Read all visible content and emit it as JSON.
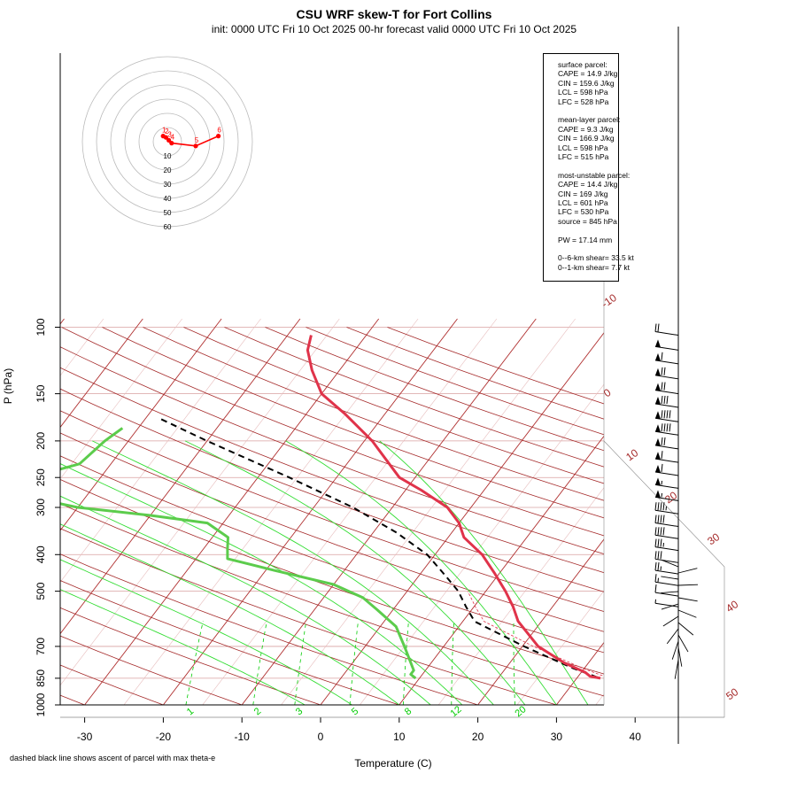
{
  "title": "CSU WRF skew-T for Fort Collins",
  "subtitle": "init: 0000 UTC Fri 10 Oct 2025     00-hr forecast valid 0000 UTC Fri 10 Oct 2025",
  "footnote": "dashed black line shows ascent of parcel with max theta-e",
  "stats": {
    "surface": {
      "heading": "surface parcel:",
      "lines": [
        "CAPE = 14.9 J/kg",
        "CIN = 159.6 J/kg",
        "LCL = 598 hPa",
        "LFC = 528 hPa"
      ]
    },
    "mean_layer": {
      "heading": "mean-layer parcel:",
      "lines": [
        "CAPE = 9.3 J/kg",
        "CIN = 166.9 J/kg",
        "LCL = 598 hPa",
        "LFC = 515 hPa"
      ]
    },
    "most_unstable": {
      "heading": "most-unstable parcel:",
      "lines": [
        "CAPE = 14.4 J/kg",
        "CIN = 169 J/kg",
        "LCL = 601 hPa",
        "LFC = 530 hPa",
        "source = 845 hPa"
      ]
    },
    "pw": "PW =  17.14 mm",
    "shear": [
      "0--6-km shear= 33.5 kt",
      "0--1-km shear= 7.7 kt"
    ]
  },
  "chart_data": {
    "type": "line",
    "subtype": "skew-T log-P diagram",
    "xlabel": "Temperature (C)",
    "ylabel": "P (hPa)",
    "x_ticks": [
      "-30",
      "-20",
      "-10",
      "0",
      "10",
      "20",
      "30",
      "40"
    ],
    "y_ticks": [
      "100",
      "150",
      "200",
      "250",
      "300",
      "400",
      "500",
      "700",
      "850",
      "1000"
    ],
    "y_scale": "log",
    "isotherm_labels": [
      "-10",
      "0",
      "10",
      "20",
      "30",
      "40",
      "50"
    ],
    "mixing_ratio_labels": [
      "1",
      "2",
      "3",
      "5",
      "8",
      "12",
      "20"
    ],
    "colors": {
      "temperature": "#e0334a",
      "dewpoint": "#5ccc4c",
      "parcel": "#000000",
      "isotherm": "#a52a2a",
      "mixing_ratio": "#00cc00",
      "dry_adiabat": "#a52a2a"
    },
    "temperature": [
      {
        "p": 850,
        "t": 33.0
      },
      {
        "p": 840,
        "t": 31.5
      },
      {
        "p": 820,
        "t": 30.5
      },
      {
        "p": 775,
        "t": 27.0
      },
      {
        "p": 700,
        "t": 22.0
      },
      {
        "p": 600,
        "t": 17.0
      },
      {
        "p": 550,
        "t": 15.0
      },
      {
        "p": 500,
        "t": 12.5
      },
      {
        "p": 450,
        "t": 9.5
      },
      {
        "p": 400,
        "t": 6.0
      },
      {
        "p": 360,
        "t": 2.0
      },
      {
        "p": 330,
        "t": 0.0
      },
      {
        "p": 300,
        "t": -3.0
      },
      {
        "p": 270,
        "t": -8.0
      },
      {
        "p": 250,
        "t": -12.0
      },
      {
        "p": 200,
        "t": -19.0
      },
      {
        "p": 170,
        "t": -25.0
      },
      {
        "p": 150,
        "t": -30.0
      },
      {
        "p": 130,
        "t": -33.5
      },
      {
        "p": 115,
        "t": -36.0
      },
      {
        "p": 105,
        "t": -37.0
      }
    ],
    "dewpoint": [
      {
        "p": 850,
        "t": 9.5
      },
      {
        "p": 830,
        "t": 8.5
      },
      {
        "p": 810,
        "t": 8.5
      },
      {
        "p": 700,
        "t": 5.0
      },
      {
        "p": 620,
        "t": 2.0
      },
      {
        "p": 560,
        "t": -2.0
      },
      {
        "p": 520,
        "t": -5.0
      },
      {
        "p": 480,
        "t": -10.0
      },
      {
        "p": 440,
        "t": -19.0
      },
      {
        "p": 410,
        "t": -26.0
      },
      {
        "p": 385,
        "t": -27.0
      },
      {
        "p": 360,
        "t": -28.0
      },
      {
        "p": 330,
        "t": -32.0
      },
      {
        "p": 315,
        "t": -40.0
      },
      {
        "p": 300,
        "t": -50.0
      },
      {
        "p": 275,
        "t": -60.0
      },
      {
        "p": 250,
        "t": -59.0
      },
      {
        "p": 230,
        "t": -54.0
      },
      {
        "p": 200,
        "t": -53.0
      },
      {
        "p": 185,
        "t": -52.0
      }
    ],
    "parcel": [
      {
        "p": 845,
        "t": 32.5
      },
      {
        "p": 800,
        "t": 28.6
      },
      {
        "p": 700,
        "t": 20.2
      },
      {
        "p": 601,
        "t": 11.5
      },
      {
        "p": 550,
        "t": 9.0
      },
      {
        "p": 500,
        "t": 6.5
      },
      {
        "p": 450,
        "t": 3.0
      },
      {
        "p": 400,
        "t": -1.0
      },
      {
        "p": 350,
        "t": -7.0
      },
      {
        "p": 300,
        "t": -15.0
      },
      {
        "p": 250,
        "t": -26.0
      },
      {
        "p": 200,
        "t": -40.0
      },
      {
        "p": 175,
        "t": -48.0
      }
    ],
    "hodograph": {
      "ring_labels": [
        "10",
        "20",
        "30",
        "40",
        "50",
        "60"
      ],
      "points": [
        {
          "label": "1",
          "u": -3,
          "v": 4
        },
        {
          "label": "2",
          "u": -1,
          "v": 3
        },
        {
          "label": "3",
          "u": 1,
          "v": 1
        },
        {
          "label": "4",
          "u": 3,
          "v": -1
        },
        {
          "label": "5",
          "u": 20,
          "v": -3
        },
        {
          "label": "6",
          "u": 36,
          "v": 4
        }
      ]
    },
    "wind_barbs": [
      {
        "p": 105,
        "kt": 20,
        "dir": 260
      },
      {
        "p": 115,
        "kt": 50,
        "dir": 265
      },
      {
        "p": 125,
        "kt": 60,
        "dir": 265
      },
      {
        "p": 137,
        "kt": 70,
        "dir": 265
      },
      {
        "p": 150,
        "kt": 70,
        "dir": 265
      },
      {
        "p": 163,
        "kt": 80,
        "dir": 265
      },
      {
        "p": 178,
        "kt": 90,
        "dir": 265
      },
      {
        "p": 193,
        "kt": 90,
        "dir": 265
      },
      {
        "p": 210,
        "kt": 70,
        "dir": 265
      },
      {
        "p": 228,
        "kt": 60,
        "dir": 265
      },
      {
        "p": 247,
        "kt": 60,
        "dir": 265
      },
      {
        "p": 267,
        "kt": 55,
        "dir": 265
      },
      {
        "p": 288,
        "kt": 55,
        "dir": 265
      },
      {
        "p": 312,
        "kt": 45,
        "dir": 270
      },
      {
        "p": 337,
        "kt": 40,
        "dir": 270
      },
      {
        "p": 363,
        "kt": 40,
        "dir": 270
      },
      {
        "p": 390,
        "kt": 35,
        "dir": 270
      },
      {
        "p": 420,
        "kt": 30,
        "dir": 270
      },
      {
        "p": 450,
        "kt": 25,
        "dir": 270
      },
      {
        "p": 483,
        "kt": 15,
        "dir": 270
      },
      {
        "p": 515,
        "kt": 10,
        "dir": 275
      },
      {
        "p": 550,
        "kt": 5,
        "dir": 280
      }
    ]
  }
}
